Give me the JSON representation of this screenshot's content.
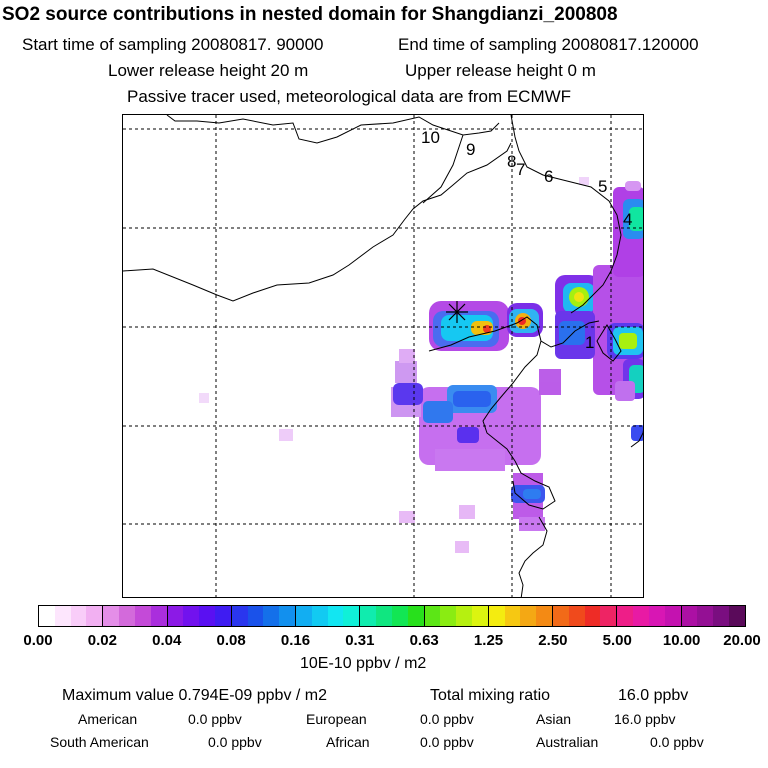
{
  "header": {
    "title": "SO2 source contributions in nested domain for Shangdianzi_200808",
    "start_label": "Start time of sampling 20080817. 90000",
    "end_label": "End time of sampling 20080817.120000",
    "lower_label": "Lower release height   20 m",
    "upper_label": "Upper release height    0 m",
    "tracer_label": "Passive tracer used, meteorological data are from ECMWF"
  },
  "map": {
    "track_labels": [
      "10",
      "9",
      "8",
      "7",
      "6",
      "5",
      "4",
      "1"
    ]
  },
  "colorbar": {
    "tick_labels": [
      "0.00",
      "0.02",
      "0.04",
      "0.08",
      "0.16",
      "0.31",
      "0.63",
      "1.25",
      "2.50",
      "5.00",
      "10.00",
      "20.00"
    ],
    "colors": [
      "#ffffff",
      "#fde6fd",
      "#f9cdf9",
      "#f2b0f2",
      "#e48ee8",
      "#d36adb",
      "#c44ad8",
      "#aa2edd",
      "#8c1ae6",
      "#7212ee",
      "#5a10f2",
      "#3f1cf2",
      "#2a36ee",
      "#1a52ea",
      "#1470ea",
      "#1290ee",
      "#12aef2",
      "#12caf2",
      "#12e6f2",
      "#10f0d8",
      "#10ecae",
      "#10e680",
      "#12e654",
      "#28e01c",
      "#5ce616",
      "#8aec12",
      "#b6f010",
      "#dcf410",
      "#f4ec10",
      "#f6c812",
      "#f4a814",
      "#f48a14",
      "#f26a18",
      "#f04a1c",
      "#ee2c26",
      "#ee2464",
      "#ee1e88",
      "#e81aa4",
      "#d816b4",
      "#c412b0",
      "#ac10a4",
      "#941094",
      "#7a0e80",
      "#5a0a5a"
    ],
    "units": "10E-10 ppbv / m2"
  },
  "summary": {
    "max_value": "Maximum value  0.794E-09 ppbv / m2",
    "total_mixing": "Total mixing ratio",
    "total_value": "16.0 ppbv",
    "american_label": "American",
    "american_value": "0.0 ppbv",
    "european_label": "European",
    "european_value": "0.0 ppbv",
    "asian_label": "Asian",
    "asian_value": "16.0 ppbv",
    "south_american_label": "South American",
    "south_american_value": "0.0 ppbv",
    "african_label": "African",
    "african_value": "0.0 ppbv",
    "australian_label": "Australian",
    "australian_value": "0.0 ppbv"
  }
}
